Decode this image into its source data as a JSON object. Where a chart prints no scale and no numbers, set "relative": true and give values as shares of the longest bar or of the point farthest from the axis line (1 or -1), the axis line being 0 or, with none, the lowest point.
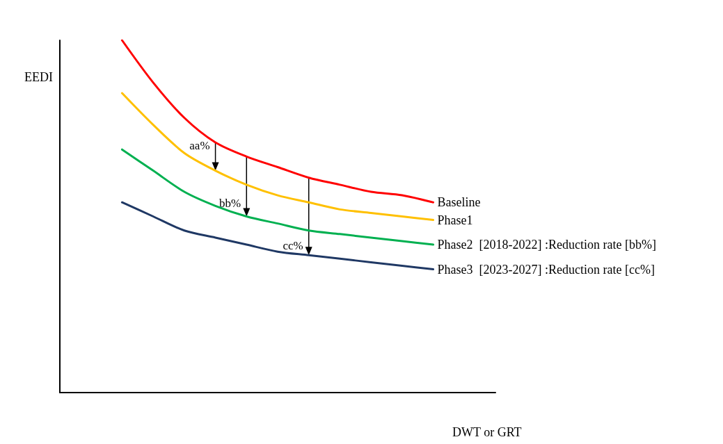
{
  "chart_data": {
    "type": "line",
    "relative": true,
    "xlabel": "DWT or GRT",
    "ylabel": "EEDI",
    "categories": [
      null,
      null,
      null,
      null,
      null,
      null,
      null,
      null,
      null,
      null,
      null,
      null,
      null,
      null,
      null
    ],
    "series": [
      {
        "name": "Baseline",
        "color": "#ff0000",
        "values": [
          null,
          null,
          1,
          0.88,
          0.78,
          0.71,
          0.67,
          0.64,
          0.61,
          0.59,
          0.57,
          0.56,
          0.54,
          null,
          null
        ]
      },
      {
        "name": "Phase1",
        "color": "#ffc000",
        "values": [
          null,
          null,
          0.85,
          0.76,
          0.68,
          0.63,
          0.59,
          0.56,
          0.54,
          0.52,
          0.51,
          0.5,
          0.49,
          null,
          null
        ]
      },
      {
        "name": "Phase2  [2018-2022] :Reduction rate [bb%]",
        "color": "#00b050",
        "values": [
          null,
          null,
          0.69,
          0.63,
          0.57,
          0.53,
          0.5,
          0.48,
          0.46,
          0.45,
          0.44,
          0.43,
          0.42,
          null,
          null
        ]
      },
      {
        "name": "Phase3  [2023-2027] :Reduction rate [cc%]",
        "color": "#1f3864",
        "values": [
          null,
          null,
          0.54,
          0.5,
          0.46,
          0.44,
          0.42,
          0.4,
          0.39,
          0.38,
          0.37,
          0.36,
          0.35,
          null,
          null
        ]
      }
    ],
    "annotations": [
      "aa%",
      "bb%",
      "cc%"
    ],
    "grid": false,
    "legend": false,
    "marker": "none",
    "line_style": "solid"
  }
}
